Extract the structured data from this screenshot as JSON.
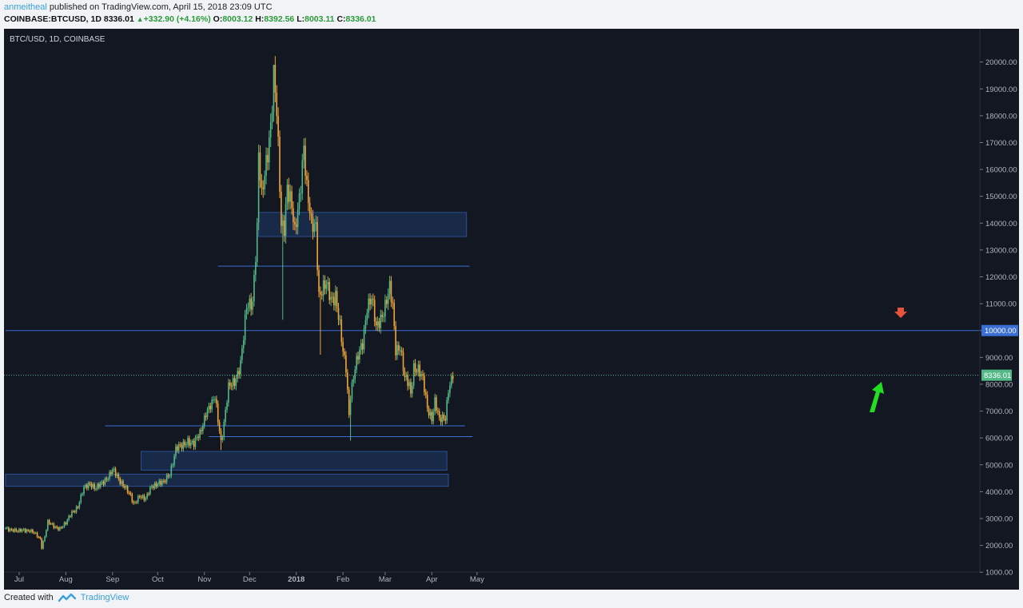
{
  "header": {
    "author": "anmeitheal",
    "published_text": "published on TradingView.com, April 15, 2018 23:09 UTC",
    "symbol": "COINBASE:BTCUSD, 1D",
    "last": "8336.01",
    "change_arrow": "▲",
    "change": "+332.90 (+4.16%)",
    "o_label": "O:",
    "o": "8003.12",
    "h_label": "H:",
    "h": "8392.56",
    "l_label": "L:",
    "l": "8003.11",
    "c_label": "C:",
    "c": "8336.01"
  },
  "chart_title": "BTC/USD, 1D, COINBASE",
  "footer": {
    "created_with": "Created with",
    "brand": "TradingView",
    "logo_icon": "tradingview-logo-icon"
  },
  "colors": {
    "background": "#131722",
    "up_candle": "#53b987",
    "down_candle": "#f0a53a",
    "zone_fill": "#1e3a66",
    "line": "#3b6fd4",
    "last_price_tag": "#53b987",
    "level_tag": "#3b6fd4",
    "down_arrow": "#e5533c",
    "up_arrow": "#22dd22"
  },
  "chart_data": {
    "type": "candlestick",
    "title": "BTC/USD, 1D, COINBASE",
    "y_ticks": [
      "1000.00",
      "2000.00",
      "3000.00",
      "4000.00",
      "5000.00",
      "6000.00",
      "7000.00",
      "8000.00",
      "9000.00",
      "10000.00",
      "11000.00",
      "12000.00",
      "13000.00",
      "14000.00",
      "15000.00",
      "16000.00",
      "17000.00",
      "18000.00",
      "19000.00",
      "20000.00"
    ],
    "x_ticks": [
      "Jul",
      "Aug",
      "Sep",
      "Oct",
      "Nov",
      "Dec",
      "2018",
      "Feb",
      "Mar",
      "Apr",
      "May"
    ],
    "x_start": "2017-06-22",
    "last_price_label": "8336.01",
    "level_label": "10000.00",
    "levels": [
      12400,
      10000,
      6450,
      6050
    ],
    "zones": [
      {
        "from": "2017-12-07",
        "to": "2018-04-24",
        "low": 13500,
        "high": 14400
      },
      {
        "from": "2017-09-20",
        "to": "2018-04-11",
        "low": 4800,
        "high": 5500
      },
      {
        "from": "2017-06-22",
        "to": "2018-04-12",
        "low": 4200,
        "high": 4650
      }
    ],
    "close_series": [
      [
        "2017-06-22",
        2650
      ],
      [
        "2017-06-26",
        2600
      ],
      [
        "2017-06-30",
        2500
      ],
      [
        "2017-07-04",
        2600
      ],
      [
        "2017-07-08",
        2550
      ],
      [
        "2017-07-12",
        2400
      ],
      [
        "2017-07-15",
        2250
      ],
      [
        "2017-07-16",
        1950
      ],
      [
        "2017-07-18",
        2350
      ],
      [
        "2017-07-20",
        2850
      ],
      [
        "2017-07-24",
        2700
      ],
      [
        "2017-07-28",
        2650
      ],
      [
        "2017-08-01",
        2800
      ],
      [
        "2017-08-05",
        3250
      ],
      [
        "2017-08-09",
        3450
      ],
      [
        "2017-08-13",
        4100
      ],
      [
        "2017-08-17",
        4350
      ],
      [
        "2017-08-21",
        4100
      ],
      [
        "2017-08-25",
        4300
      ],
      [
        "2017-08-29",
        4600
      ],
      [
        "2017-09-01",
        4800
      ],
      [
        "2017-09-05",
        4450
      ],
      [
        "2017-09-09",
        4250
      ],
      [
        "2017-09-13",
        3800
      ],
      [
        "2017-09-15",
        3500
      ],
      [
        "2017-09-19",
        3900
      ],
      [
        "2017-09-23",
        3700
      ],
      [
        "2017-09-27",
        4200
      ],
      [
        "2017-10-01",
        4350
      ],
      [
        "2017-10-05",
        4300
      ],
      [
        "2017-10-09",
        4700
      ],
      [
        "2017-10-13",
        5600
      ],
      [
        "2017-10-17",
        5650
      ],
      [
        "2017-10-21",
        5950
      ],
      [
        "2017-10-25",
        5750
      ],
      [
        "2017-10-29",
        6150
      ],
      [
        "2017-11-02",
        7000
      ],
      [
        "2017-11-06",
        7200
      ],
      [
        "2017-11-08",
        7500
      ],
      [
        "2017-11-11",
        6350
      ],
      [
        "2017-11-12",
        5900
      ],
      [
        "2017-11-14",
        6550
      ],
      [
        "2017-11-17",
        7800
      ],
      [
        "2017-11-21",
        8150
      ],
      [
        "2017-11-25",
        8800
      ],
      [
        "2017-11-27",
        9700
      ],
      [
        "2017-11-29",
        10800
      ],
      [
        "2017-12-03",
        11200
      ],
      [
        "2017-12-06",
        13800
      ],
      [
        "2017-12-07",
        16500
      ],
      [
        "2017-12-09",
        14800
      ],
      [
        "2017-12-13",
        16800
      ],
      [
        "2017-12-15",
        17800
      ],
      [
        "2017-12-17",
        19500
      ],
      [
        "2017-12-19",
        18000
      ],
      [
        "2017-12-22",
        13900
      ],
      [
        "2017-12-24",
        14000
      ],
      [
        "2017-12-26",
        15500
      ],
      [
        "2017-12-29",
        14500
      ],
      [
        "2017-12-31",
        13500
      ],
      [
        "2018-01-03",
        15000
      ],
      [
        "2018-01-06",
        17000
      ],
      [
        "2018-01-08",
        15200
      ],
      [
        "2018-01-11",
        13800
      ],
      [
        "2018-01-14",
        14000
      ],
      [
        "2018-01-16",
        11400
      ],
      [
        "2018-01-18",
        11500
      ],
      [
        "2018-01-21",
        11600
      ],
      [
        "2018-01-24",
        11200
      ],
      [
        "2018-01-27",
        11400
      ],
      [
        "2018-01-30",
        10100
      ],
      [
        "2018-02-01",
        9100
      ],
      [
        "2018-02-03",
        8600
      ],
      [
        "2018-02-05",
        6900
      ],
      [
        "2018-02-06",
        7700
      ],
      [
        "2018-02-09",
        8600
      ],
      [
        "2018-02-14",
        9500
      ],
      [
        "2018-02-17",
        11000
      ],
      [
        "2018-02-20",
        11200
      ],
      [
        "2018-02-23",
        10000
      ],
      [
        "2018-02-26",
        10500
      ],
      [
        "2018-03-01",
        11000
      ],
      [
        "2018-03-04",
        11500
      ],
      [
        "2018-03-06",
        10800
      ],
      [
        "2018-03-08",
        9300
      ],
      [
        "2018-03-11",
        9500
      ],
      [
        "2018-03-14",
        8200
      ],
      [
        "2018-03-17",
        7900
      ],
      [
        "2018-03-18",
        7600
      ],
      [
        "2018-03-20",
        8700
      ],
      [
        "2018-03-23",
        8600
      ],
      [
        "2018-03-26",
        8100
      ],
      [
        "2018-03-29",
        7100
      ],
      [
        "2018-04-01",
        6800
      ],
      [
        "2018-04-03",
        7400
      ],
      [
        "2018-04-06",
        6600
      ],
      [
        "2018-04-10",
        6800
      ],
      [
        "2018-04-12",
        7900
      ],
      [
        "2018-04-15",
        8336
      ]
    ]
  }
}
